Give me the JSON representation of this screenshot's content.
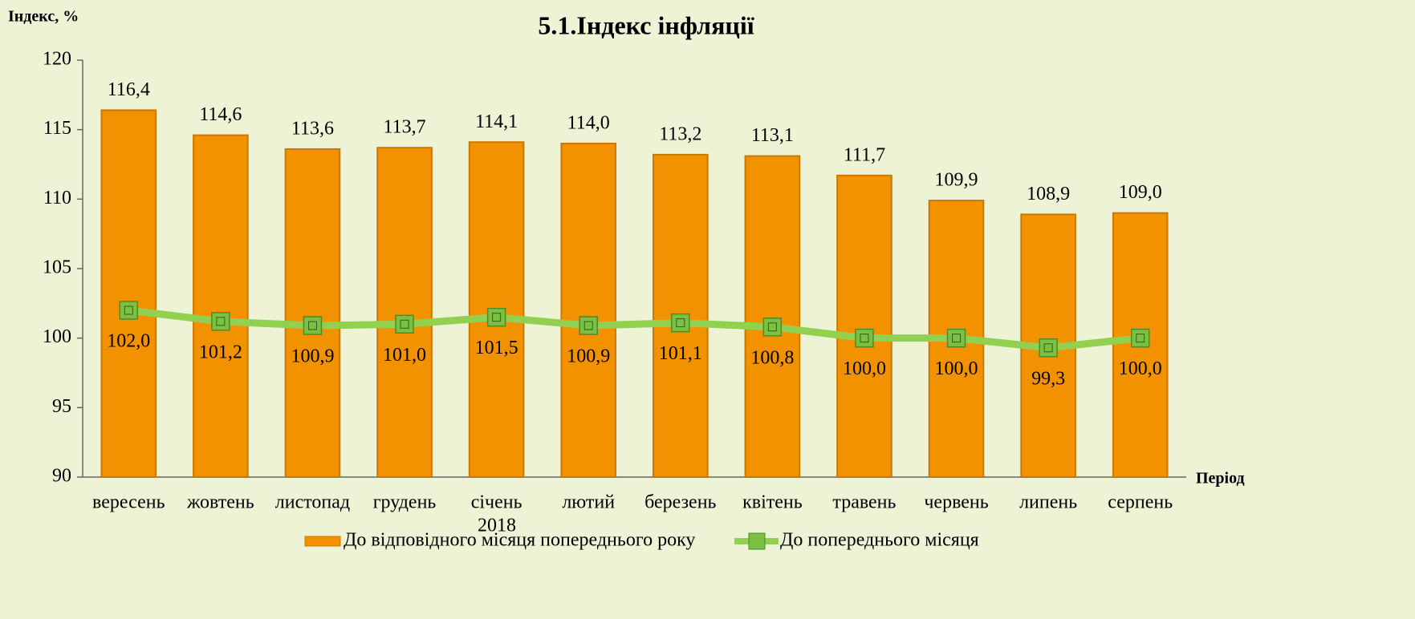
{
  "chart_data": {
    "type": "bar",
    "title": "5.1.Індекс інфляції",
    "y_label": "Індекс, %",
    "x_label": "Період",
    "x_annotation": "2018",
    "categories": [
      "вересень",
      "жовтень",
      "листопад",
      "грудень",
      "січень",
      "лютий",
      "березень",
      "квітень",
      "травень",
      "червень",
      "липень",
      "серпень"
    ],
    "series": [
      {
        "name": "До відповідного місяця  попереднього року",
        "type": "bar",
        "color": "#f39200",
        "values": [
          116.4,
          114.6,
          113.6,
          113.7,
          114.1,
          114.0,
          113.2,
          113.1,
          111.7,
          109.9,
          108.9,
          109.0
        ],
        "value_labels": [
          "116,4",
          "114,6",
          "113,6",
          "113,7",
          "114,1",
          "114,0",
          "113,2",
          "113,1",
          "111,7",
          "109,9",
          "108,9",
          "109,0"
        ]
      },
      {
        "name": "До попереднього місяця",
        "type": "line",
        "color": "#92d050",
        "values": [
          102.0,
          101.2,
          100.9,
          101.0,
          101.5,
          100.9,
          101.1,
          100.8,
          100.0,
          100.0,
          99.3,
          100.0
        ],
        "value_labels": [
          "102,0",
          "101,2",
          "100,9",
          "101,0",
          "101,5",
          "100,9",
          "101,1",
          "100,8",
          "100,0",
          "100,0",
          "99,3",
          "100,0"
        ]
      }
    ],
    "ylim": [
      90,
      120
    ],
    "yticks": [
      90,
      95,
      100,
      105,
      110,
      115,
      120
    ]
  }
}
